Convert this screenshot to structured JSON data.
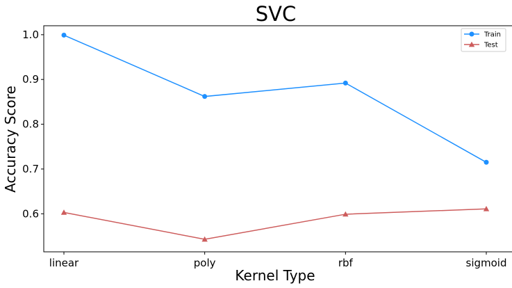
{
  "chart_data": {
    "type": "line",
    "title": "SVC",
    "xlabel": "Kernel Type",
    "ylabel": "Accuracy Score",
    "categories": [
      "linear",
      "poly",
      "rbf",
      "sigmoid"
    ],
    "series": [
      {
        "name": "Train",
        "values": [
          0.999,
          0.862,
          0.892,
          0.715
        ],
        "color": "#1e90ff",
        "marker": "circle"
      },
      {
        "name": "Test",
        "values": [
          0.603,
          0.543,
          0.599,
          0.611
        ],
        "color": "#cd5c5c",
        "marker": "triangle"
      }
    ],
    "yticks": [
      "0.6",
      "0.7",
      "0.8",
      "0.9",
      "1.0"
    ],
    "ylim": [
      0.515,
      1.02
    ],
    "grid": false,
    "legend_position": "top-right"
  }
}
